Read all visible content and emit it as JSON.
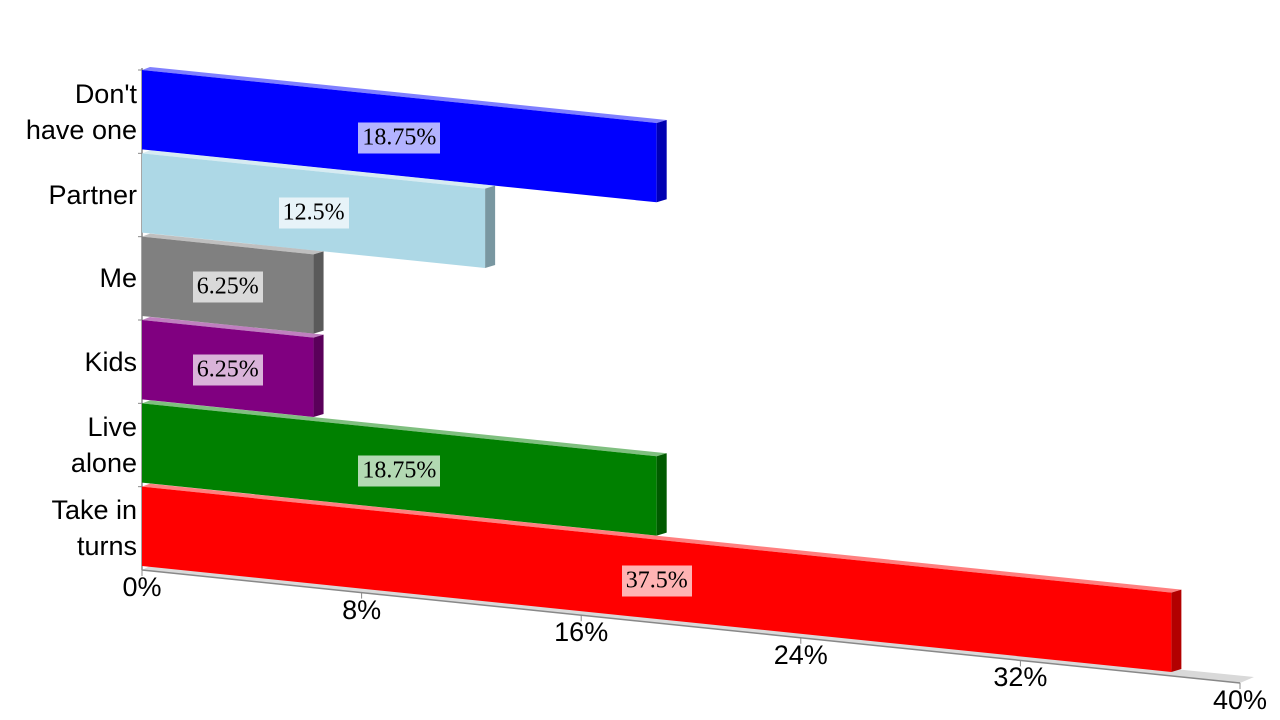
{
  "chart_data": {
    "type": "bar3d",
    "categories": [
      "Don't\nhave one",
      "Partner",
      "Me",
      "Kids",
      "Live\nalone",
      "Take in\nturns"
    ],
    "values": [
      18.75,
      12.5,
      6.25,
      6.25,
      18.75,
      37.5
    ],
    "value_labels": [
      "18.75%",
      "12.5%",
      "6.25%",
      "6.25%",
      "18.75%",
      "37.5%"
    ],
    "colors": [
      "#0000ff",
      "#add8e6",
      "#808080",
      "#800080",
      "#008000",
      "#ff0000"
    ],
    "xlim": [
      0,
      40
    ],
    "xticks": [
      {
        "value": 0,
        "label": "0%"
      },
      {
        "value": 8,
        "label": "8%"
      },
      {
        "value": 16,
        "label": "16%"
      },
      {
        "value": 24,
        "label": "24%"
      },
      {
        "value": 32,
        "label": "32%"
      },
      {
        "value": 40,
        "label": "40%"
      }
    ]
  }
}
